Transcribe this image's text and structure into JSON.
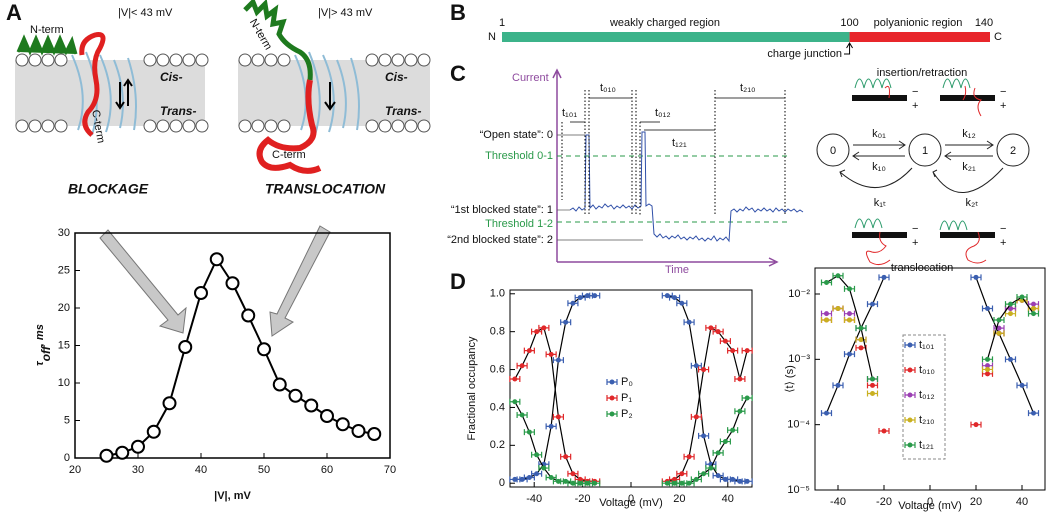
{
  "panels": {
    "a": "A",
    "b": "B",
    "c": "C",
    "d": "D"
  },
  "panel_a_top": {
    "left_voltage": "|V|< 43 mV",
    "right_voltage": "|V|> 43 mV",
    "n_term_left": "N-term",
    "n_term_right": "N-term",
    "c_term_left": "C-term",
    "c_term_right": "C-term",
    "cis_left": "Cis-",
    "cis_right": "Cis-",
    "trans_left": "Trans-",
    "trans_right": "Trans-",
    "blockage": "BLOCKAGE",
    "translocation": "TRANSLOCATION"
  },
  "panel_b": {
    "start": 1,
    "junction_index": 100,
    "end": 140,
    "n": "N",
    "c": "C",
    "weak": "weakly charged region",
    "poly": "polyanionic region",
    "junction": "charge junction"
  },
  "panel_c": {
    "y_axis": "Current",
    "x_axis": "Time",
    "open": "“Open state”: 0",
    "thr01": "Threshold 0-1",
    "blocked1": "“1st blocked state”: 1",
    "thr12": "Threshold 1-2",
    "blocked2": "“2nd blocked state”: 2",
    "dwell": [
      "t₁₀₁",
      "t₀₁₀",
      "t₀₁₂",
      "t₁₂₁",
      "t₂₁₀"
    ],
    "states": [
      "0",
      "1",
      "2"
    ],
    "rates": [
      "k₀₁",
      "k₁₀",
      "k₁₂",
      "k₂₁",
      "k₁ₜ",
      "k₂ₜ"
    ],
    "insertion": "insertion/retraction",
    "translocation": "translocation",
    "minus": "−",
    "plus": "+"
  },
  "chart_data": [
    {
      "type": "line",
      "x": [
        25,
        27.5,
        30,
        32.5,
        35,
        37.5,
        40,
        42.5,
        45,
        47.5,
        50,
        52.5,
        55,
        57.5,
        60,
        62.5,
        65,
        67.5
      ],
      "values": [
        0.3,
        0.7,
        1.5,
        3.5,
        7.3,
        14.8,
        22,
        26.5,
        23.3,
        19,
        14.5,
        9.8,
        8.3,
        7,
        5.6,
        4.5,
        3.6,
        3.2
      ],
      "color": "#000000",
      "marker_fill": "#ffffff",
      "xlim": [
        20,
        70
      ],
      "xticks": [
        20,
        30,
        40,
        50,
        60,
        70
      ],
      "ylim": [
        0,
        30
      ],
      "yticks": [
        0,
        5,
        10,
        15,
        20,
        25,
        30
      ],
      "x_label": "|V|, mV",
      "y_label": "τ",
      "y_label_sub": "off",
      "y_label_unit": ", ms"
    },
    {
      "type": "scatter",
      "x": [
        -48,
        -45,
        -42,
        -39,
        -36,
        -33,
        -30,
        -27,
        -24,
        -21,
        -18,
        -15,
        15,
        18,
        21,
        24,
        27,
        30,
        33,
        36,
        39,
        42,
        45,
        48
      ],
      "series": [
        {
          "name": "P₀",
          "color": "#3b5fb0",
          "fit": true,
          "values": [
            0.02,
            0.02,
            0.03,
            0.05,
            0.1,
            0.3,
            0.65,
            0.85,
            0.95,
            0.98,
            0.99,
            0.99,
            0.99,
            0.98,
            0.95,
            0.85,
            0.62,
            0.25,
            0.1,
            0.04,
            0.02,
            0.02,
            0.01,
            0.01
          ]
        },
        {
          "name": "P₁",
          "color": "#e0282a",
          "fit": true,
          "values": [
            0.55,
            0.62,
            0.7,
            0.8,
            0.82,
            0.68,
            0.35,
            0.14,
            0.05,
            0.02,
            0.01,
            0.01,
            0.01,
            0.02,
            0.05,
            0.14,
            0.35,
            0.6,
            0.82,
            0.8,
            0.75,
            0.7,
            0.55,
            0.7
          ]
        },
        {
          "name": "P₂",
          "color": "#2a9a4a",
          "fit": true,
          "values": [
            0.43,
            0.36,
            0.27,
            0.15,
            0.08,
            0.03,
            0.01,
            0.01,
            0,
            0,
            0,
            0,
            0,
            0,
            0,
            0,
            0.02,
            0.05,
            0.08,
            0.16,
            0.22,
            0.28,
            0.38,
            0.45
          ]
        }
      ],
      "fit_color": "#000000",
      "xlim": [
        -50,
        50
      ],
      "xticks": [
        -40,
        -20,
        0,
        20,
        40
      ],
      "ylim": [
        -0.02,
        1.02
      ],
      "yticks": [
        0,
        0.2,
        0.4,
        0.6,
        0.8,
        {
          "value": 1,
          "label": "1.0"
        }
      ],
      "x_label": "Voltage (mV)",
      "y_label": "Fractional occupancy"
    },
    {
      "type": "scatter",
      "log_y": true,
      "x": [
        -45,
        -40,
        -35,
        -30,
        -25,
        -20,
        20,
        25,
        30,
        35,
        40,
        45
      ],
      "series": [
        {
          "name": "t₁₀₁",
          "color": "#3b5fb0",
          "fit": true,
          "values": [
            0.00015,
            0.0004,
            0.0012,
            0.003,
            0.007,
            0.018,
            0.018,
            0.006,
            0.0025,
            0.001,
            0.0004,
            0.00015
          ]
        },
        {
          "name": "t₀₁₀",
          "color": "#e0282a",
          "fit": false,
          "values": [
            0.004,
            0.006,
            0.004,
            0.0015,
            0.0004,
            8e-05,
            0.0001,
            0.0006,
            0.0025,
            0.006,
            0.008,
            0.006
          ]
        },
        {
          "name": "t₀₁₂",
          "color": "#9b3fb3",
          "fit": false,
          "values": [
            0.005,
            0.006,
            0.005,
            0.002,
            0.0005,
            null,
            null,
            0.0008,
            0.003,
            0.006,
            0.008,
            0.007
          ]
        },
        {
          "name": "t₂₁₀",
          "color": "#c9b020",
          "fit": false,
          "values": [
            0.004,
            0.006,
            0.004,
            0.002,
            0.0003,
            null,
            null,
            0.0007,
            0.0025,
            0.005,
            0.008,
            0.006
          ]
        },
        {
          "name": "t₁₂₁",
          "color": "#2a9a4a",
          "fit": true,
          "values": [
            0.015,
            0.019,
            0.012,
            0.003,
            0.0005,
            null,
            null,
            0.001,
            0.004,
            0.007,
            0.009,
            0.005
          ]
        }
      ],
      "fit_color": "#000000",
      "xlim": [
        -50,
        50
      ],
      "xticks": [
        -40,
        -20,
        0,
        20,
        40
      ],
      "ylim": [
        1e-05,
        0.025
      ],
      "yticks": [
        {
          "value": 1e-05,
          "label": "10⁻⁵"
        },
        {
          "value": 0.0001,
          "label": "10⁻⁴"
        },
        {
          "value": 0.001,
          "label": "10⁻³"
        },
        {
          "value": 0.01,
          "label": "10⁻²"
        }
      ],
      "x_label": "Voltage (mV)",
      "y_label": "⟨t⟩ (s)"
    }
  ]
}
